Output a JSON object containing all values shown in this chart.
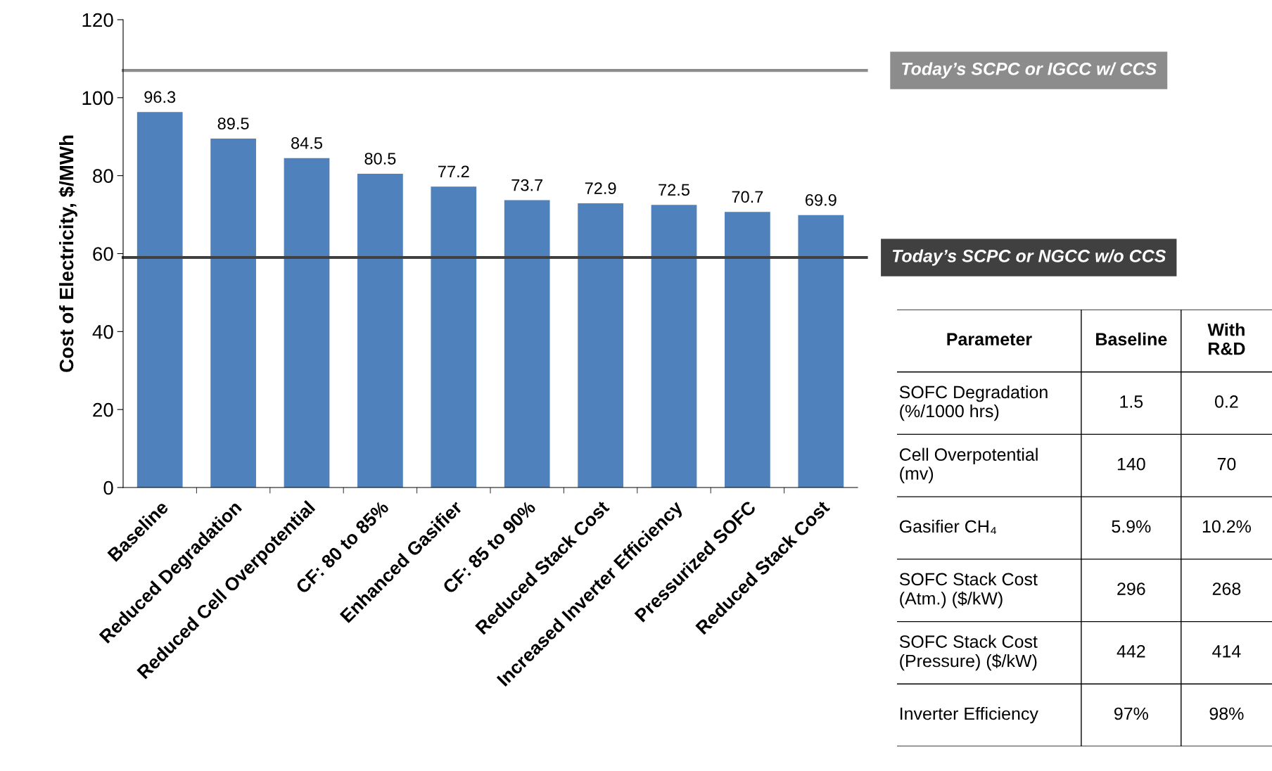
{
  "chart_data": [
    {
      "type": "bar",
      "ylabel": "Cost of Electricity, $/MWh",
      "categories": [
        "Baseline",
        "Reduced Degradation",
        "Reduced Cell Overpotential",
        "CF: 80 to 85%",
        "Enhanced Gasifier",
        "CF: 85 to 90%",
        "Reduced Stack Cost",
        "Increased Inverter Efficiency",
        "Pressurized SOFC",
        "Reduced Stack Cost"
      ],
      "values": [
        96.3,
        89.5,
        84.5,
        80.5,
        77.2,
        73.7,
        72.9,
        72.5,
        70.7,
        69.9
      ],
      "color": "#4f81bd",
      "data_labels": true,
      "grid": false,
      "ylim": [
        0,
        120
      ],
      "yticks": [
        0,
        20,
        40,
        60,
        80,
        100,
        120
      ],
      "ref_lines": [
        {
          "axis": "y",
          "value": 107,
          "label": "Today’s SCPC or IGCC w/ CCS",
          "color": "#8c8c8c"
        },
        {
          "axis": "y",
          "value": 59,
          "label": "Today’s SCPC or NGCC w/o CCS",
          "color": "#404040"
        }
      ]
    },
    {
      "type": "other",
      "annotations": [
        "Parameter",
        "Baseline",
        "With\nR&D",
        "SOFC Degradation\n(%/1000 hrs)",
        "1.5",
        "0.2",
        "Cell Overpotential\n(mv)",
        "140",
        "70",
        "Gasifier CH₄",
        "5.9%",
        "10.2%",
        "SOFC Stack Cost\n(Atm.) ($/kW)",
        "296",
        "268",
        "SOFC Stack Cost\n(Pressure) ($/kW)",
        "442",
        "414",
        "Inverter Efficiency",
        "97%",
        "98%"
      ]
    }
  ]
}
